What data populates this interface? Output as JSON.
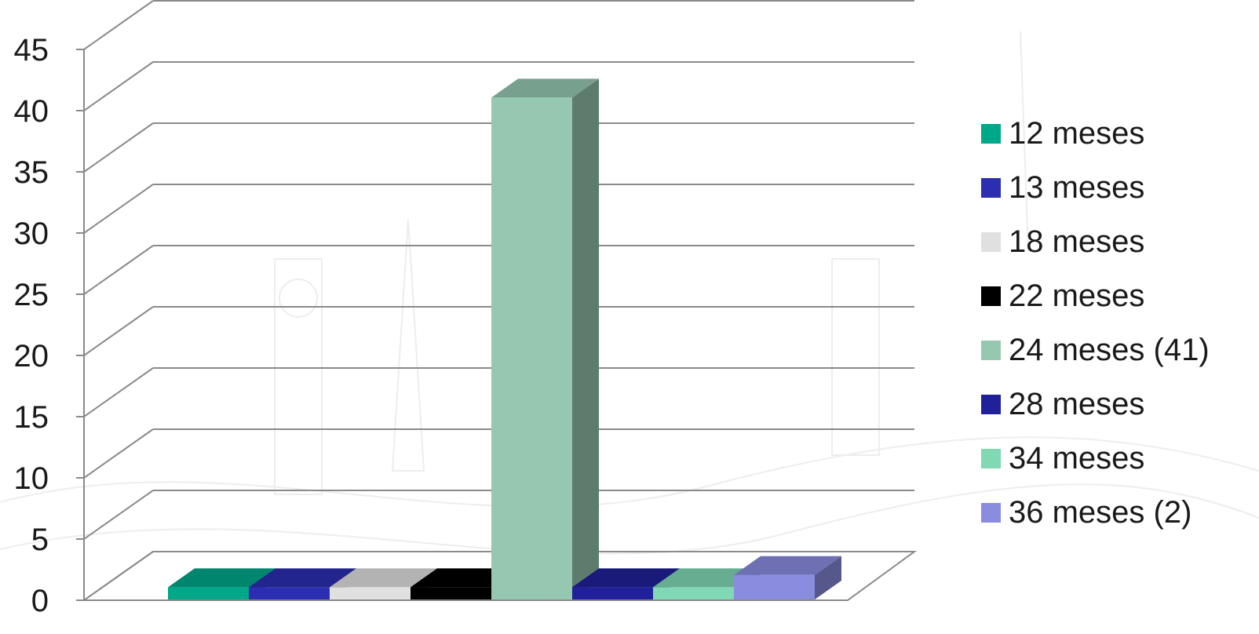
{
  "chart_data": {
    "type": "bar",
    "categories": [
      "12 meses",
      "13 meses",
      "18 meses",
      "22 meses",
      "24 meses (41)",
      "28 meses",
      "34 meses",
      "36 meses (2)"
    ],
    "values": [
      1,
      1,
      1,
      1,
      41,
      1,
      1,
      2
    ],
    "colors": [
      "#00a88a",
      "#2b2eb0",
      "#e0e0e0",
      "#000000",
      "#96c8b1",
      "#20209a",
      "#80d8b5",
      "#8a8ce0"
    ],
    "title": "",
    "xlabel": "",
    "ylabel": "",
    "ylim": [
      0,
      45
    ],
    "y_ticks": [
      "0",
      "5",
      "10",
      "15",
      "20",
      "25",
      "30",
      "35",
      "40",
      "45"
    ],
    "grid": true,
    "legend_position": "right",
    "style": "3d-column",
    "background": "faint line-art travel illustration (landmarks, road)"
  }
}
